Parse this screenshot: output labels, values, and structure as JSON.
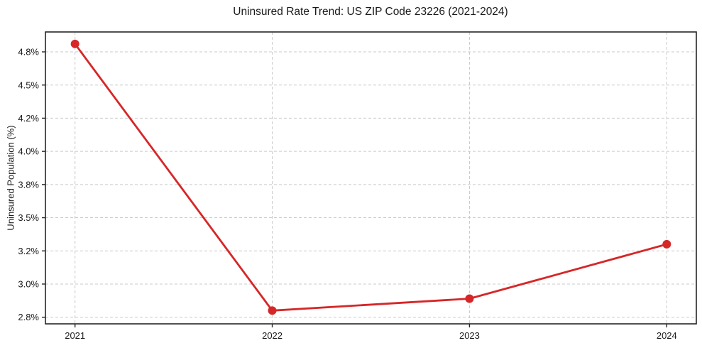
{
  "title": "Uninsured Rate Trend: US ZIP Code 23226 (2021-2024)",
  "chart_data": {
    "type": "line",
    "title": "Uninsured Rate Trend: US ZIP Code 23226 (2021-2024)",
    "xlabel": "",
    "ylabel": "Uninsured Population (%)",
    "x": [
      2021,
      2022,
      2023,
      2024
    ],
    "values": [
      4.81,
      2.8,
      2.89,
      3.3
    ],
    "xlim": [
      2020.85,
      2024.15
    ],
    "ylim": [
      2.7,
      4.9
    ],
    "xticks": [
      {
        "value": 2021,
        "label": "2021"
      },
      {
        "value": 2022,
        "label": "2022"
      },
      {
        "value": 2023,
        "label": "2023"
      },
      {
        "value": 2024,
        "label": "2024"
      }
    ],
    "yticks": [
      {
        "value": 2.75,
        "label": "2.8%"
      },
      {
        "value": 3.0,
        "label": "3.0%"
      },
      {
        "value": 3.25,
        "label": "3.2%"
      },
      {
        "value": 3.5,
        "label": "3.5%"
      },
      {
        "value": 3.75,
        "label": "3.8%"
      },
      {
        "value": 4.0,
        "label": "4.0%"
      },
      {
        "value": 4.25,
        "label": "4.2%"
      },
      {
        "value": 4.5,
        "label": "4.5%"
      },
      {
        "value": 4.75,
        "label": "4.8%"
      }
    ],
    "grid": true,
    "grid_style": "dashed",
    "legend_position": "none",
    "marker": "circle"
  },
  "colors": {
    "line": "#d62728",
    "marker": "#d62728",
    "grid": "#c9c9c9",
    "axis": "#262626",
    "text": "#1a1a1a",
    "background": "#ffffff"
  }
}
